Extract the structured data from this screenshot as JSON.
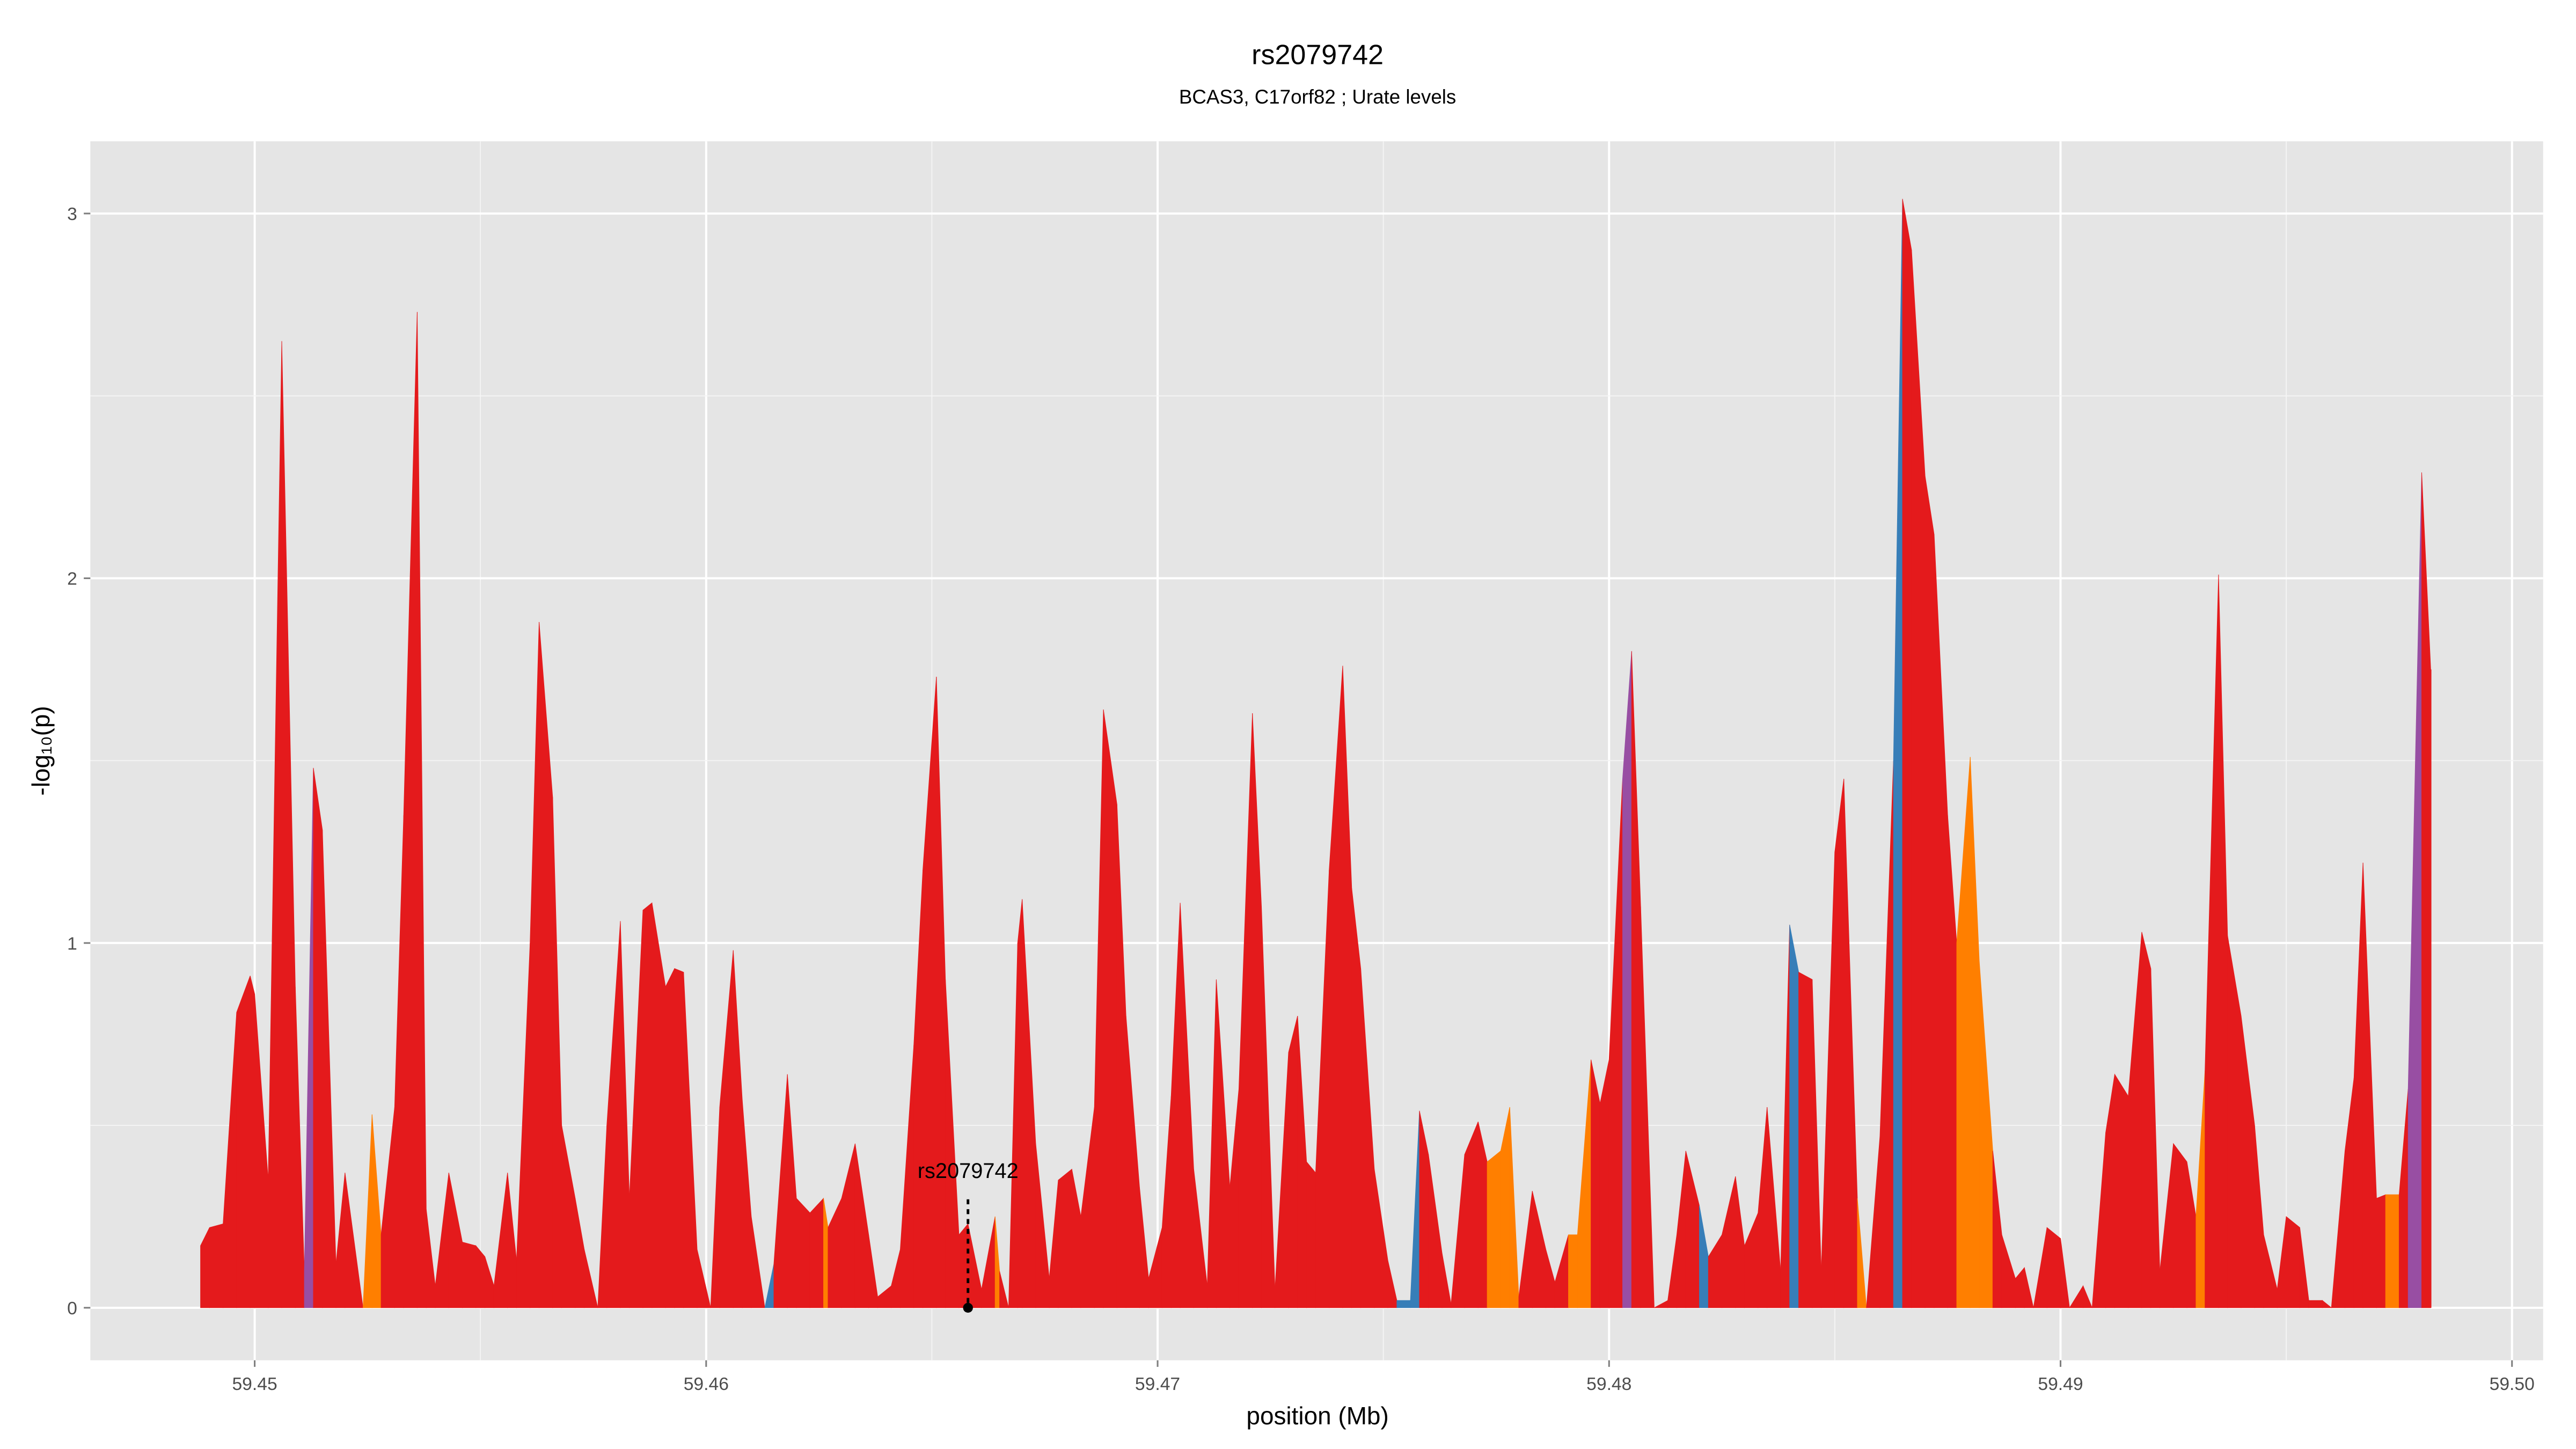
{
  "chart_data": {
    "type": "area",
    "title": "rs2079742",
    "subtitle": "BCAS3, C17orf82 ; Urate levels",
    "x_label": "position (Mb)",
    "y_label": "-log₁₀(p)",
    "xlim": [
      59.44636,
      59.50069
    ],
    "ylim": [
      -0.144,
      3.198
    ],
    "xticks": [
      59.45,
      59.46,
      59.47,
      59.48,
      59.49,
      {
        "value": 59.5,
        "label": "59.50"
      }
    ],
    "yticks": [
      0,
      1,
      2,
      3
    ],
    "grid": true,
    "annotation": {
      "label": "rs2079742",
      "x": 59.4658,
      "y": 0
    },
    "x": [
      59.4488,
      59.449,
      59.4493,
      59.4496,
      59.4499,
      59.45,
      59.4503,
      59.4506,
      59.4509,
      59.4511,
      59.4513,
      59.4515,
      59.4518,
      59.452,
      59.4524,
      59.4526,
      59.4528,
      59.4531,
      59.4533,
      59.4536,
      59.4538,
      59.454,
      59.4543,
      59.4546,
      59.4549,
      59.4551,
      59.4553,
      59.4556,
      59.4558,
      59.4561,
      59.4563,
      59.4566,
      59.4568,
      59.4571,
      59.4573,
      59.4576,
      59.4578,
      59.4581,
      59.4583,
      59.4586,
      59.4588,
      59.4591,
      59.4593,
      59.4595,
      59.4598,
      59.4601,
      59.4603,
      59.4606,
      59.4608,
      59.461,
      59.4613,
      59.4615,
      59.4618,
      59.462,
      59.4623,
      59.4626,
      59.4627,
      59.463,
      59.4633,
      59.4636,
      59.4638,
      59.4641,
      59.4643,
      59.4646,
      59.4648,
      59.4651,
      59.4653,
      59.4656,
      59.4658,
      59.4661,
      59.4664,
      59.4665,
      59.4667,
      59.4669,
      59.467,
      59.4673,
      59.4676,
      59.4678,
      59.4681,
      59.4683,
      59.4686,
      59.4688,
      59.4691,
      59.4693,
      59.4696,
      59.4698,
      59.4701,
      59.4703,
      59.4705,
      59.4708,
      59.4711,
      59.4713,
      59.4716,
      59.4718,
      59.4721,
      59.4723,
      59.4726,
      59.4729,
      59.4731,
      59.4733,
      59.4735,
      59.4738,
      59.4741,
      59.4743,
      59.4745,
      59.4748,
      59.4751,
      59.4753,
      59.4756,
      59.4758,
      59.476,
      59.4763,
      59.4765,
      59.4768,
      59.4771,
      59.4773,
      59.4776,
      59.4778,
      59.478,
      59.4783,
      59.4786,
      59.4788,
      59.4791,
      59.4793,
      59.4796,
      59.4798,
      59.48,
      59.4803,
      59.4805,
      59.4807,
      59.481,
      59.4813,
      59.4815,
      59.4817,
      59.482,
      59.4822,
      59.4825,
      59.4828,
      59.483,
      59.4833,
      59.4835,
      59.4838,
      59.484,
      59.4842,
      59.4845,
      59.4847,
      59.485,
      59.4852,
      59.4855,
      59.4857,
      59.486,
      59.4863,
      59.4865,
      59.4867,
      59.487,
      59.4872,
      59.4875,
      59.4877,
      59.488,
      59.4882,
      59.4885,
      59.4887,
      59.489,
      59.4892,
      59.4894,
      59.4897,
      59.49,
      59.4902,
      59.4905,
      59.4907,
      59.491,
      59.4912,
      59.4915,
      59.4918,
      59.492,
      59.4922,
      59.4925,
      59.4928,
      59.493,
      59.4932,
      59.4935,
      59.4937,
      59.494,
      59.4943,
      59.4945,
      59.4948,
      59.495,
      59.4953,
      59.4955,
      59.4958,
      59.496,
      59.4963,
      59.4965,
      59.4967,
      59.497,
      59.4972,
      59.4975,
      59.4977,
      59.498,
      59.4982
    ],
    "values": [
      0.17,
      0.22,
      0.23,
      0.81,
      0.91,
      0.86,
      0.35,
      2.65,
      0.88,
      0.1,
      1.48,
      1.31,
      0.12,
      0.37,
      0,
      0.53,
      0.2,
      0.55,
      1.35,
      2.73,
      0.27,
      0.06,
      0.37,
      0.18,
      0.17,
      0.14,
      0.06,
      0.37,
      0.13,
      1,
      1.88,
      1.4,
      0.5,
      0.3,
      0.16,
      0,
      0.5,
      1.06,
      0.3,
      1.09,
      1.11,
      0.88,
      0.93,
      0.92,
      0.16,
      0,
      0.55,
      0.98,
      0.57,
      0.25,
      0,
      0.12,
      0.64,
      0.3,
      0.26,
      0.3,
      0.22,
      0.3,
      0.45,
      0.2,
      0.03,
      0.06,
      0.16,
      0.72,
      1.2,
      1.73,
      0.9,
      0.2,
      0.23,
      0.05,
      0.25,
      0.1,
      0,
      1,
      1.12,
      0.45,
      0.08,
      0.35,
      0.38,
      0.25,
      0.55,
      1.64,
      1.38,
      0.8,
      0.33,
      0.08,
      0.22,
      0.58,
      1.11,
      0.38,
      0.06,
      0.9,
      0.33,
      0.6,
      1.63,
      1.1,
      0.05,
      0.7,
      0.8,
      0.4,
      0.37,
      1.2,
      1.76,
      1.15,
      0.93,
      0.38,
      0.13,
      0.02,
      0.02,
      0.54,
      0.42,
      0.15,
      0.01,
      0.42,
      0.51,
      0.4,
      0.43,
      0.55,
      0.03,
      0.32,
      0.16,
      0.07,
      0.2,
      0.2,
      0.68,
      0.56,
      0.68,
      1.45,
      1.8,
      1.1,
      0,
      0.02,
      0.2,
      0.43,
      0.28,
      0.14,
      0.2,
      0.36,
      0.17,
      0.26,
      0.55,
      0.1,
      1.05,
      0.92,
      0.9,
      0.1,
      1.25,
      1.45,
      0.3,
      0,
      0.47,
      1.5,
      3.04,
      2.9,
      2.28,
      2.12,
      1.35,
      1,
      1.51,
      0.95,
      0.43,
      0.2,
      0.08,
      0.11,
      0,
      0.22,
      0.19,
      0,
      0.06,
      0,
      0.48,
      0.64,
      0.58,
      1.03,
      0.93,
      0.1,
      0.45,
      0.4,
      0.25,
      0.65,
      2.01,
      1.02,
      0.8,
      0.5,
      0.2,
      0.05,
      0.25,
      0.22,
      0.02,
      0.02,
      0,
      0.43,
      0.63,
      1.22,
      0.3,
      0.31,
      0.31,
      0.6,
      2.29,
      1.75
    ],
    "colors": [
      "#e41a1c",
      "#e41a1c",
      "#e41a1c",
      "#e41a1c",
      "#e41a1c",
      "#e41a1c",
      "#e41a1c",
      "#e41a1c",
      "#e41a1c",
      "#984ea3",
      "#e41a1c",
      "#e41a1c",
      "#e41a1c",
      "#e41a1c",
      "#ff7f00",
      "#ff7f00",
      "#e41a1c",
      "#e41a1c",
      "#e41a1c",
      "#e41a1c",
      "#e41a1c",
      "#e41a1c",
      "#e41a1c",
      "#e41a1c",
      "#e41a1c",
      "#e41a1c",
      "#e41a1c",
      "#e41a1c",
      "#e41a1c",
      "#e41a1c",
      "#e41a1c",
      "#e41a1c",
      "#e41a1c",
      "#e41a1c",
      "#e41a1c",
      "#e41a1c",
      "#e41a1c",
      "#e41a1c",
      "#e41a1c",
      "#e41a1c",
      "#e41a1c",
      "#e41a1c",
      "#e41a1c",
      "#e41a1c",
      "#e41a1c",
      "#e41a1c",
      "#e41a1c",
      "#e41a1c",
      "#e41a1c",
      "#e41a1c",
      "#377eb8",
      "#e41a1c",
      "#e41a1c",
      "#e41a1c",
      "#e41a1c",
      "#ff7f00",
      "#e41a1c",
      "#e41a1c",
      "#e41a1c",
      "#e41a1c",
      "#e41a1c",
      "#e41a1c",
      "#e41a1c",
      "#e41a1c",
      "#e41a1c",
      "#e41a1c",
      "#e41a1c",
      "#e41a1c",
      "#e41a1c",
      "#e41a1c",
      "#ff7f00",
      "#e41a1c",
      "#e41a1c",
      "#e41a1c",
      "#e41a1c",
      "#e41a1c",
      "#e41a1c",
      "#e41a1c",
      "#e41a1c",
      "#e41a1c",
      "#e41a1c",
      "#e41a1c",
      "#e41a1c",
      "#e41a1c",
      "#e41a1c",
      "#e41a1c",
      "#e41a1c",
      "#e41a1c",
      "#e41a1c",
      "#e41a1c",
      "#e41a1c",
      "#e41a1c",
      "#e41a1c",
      "#e41a1c",
      "#e41a1c",
      "#e41a1c",
      "#e41a1c",
      "#e41a1c",
      "#e41a1c",
      "#e41a1c",
      "#e41a1c",
      "#e41a1c",
      "#e41a1c",
      "#e41a1c",
      "#e41a1c",
      "#e41a1c",
      "#e41a1c",
      "#377eb8",
      "#377eb8",
      "#e41a1c",
      "#e41a1c",
      "#e41a1c",
      "#e41a1c",
      "#e41a1c",
      "#e41a1c",
      "#ff7f00",
      "#ff7f00",
      "#ff7f00",
      "#e41a1c",
      "#e41a1c",
      "#e41a1c",
      "#e41a1c",
      "#ff7f00",
      "#ff7f00",
      "#e41a1c",
      "#e41a1c",
      "#e41a1c",
      "#984ea3",
      "#e41a1c",
      "#e41a1c",
      "#e41a1c",
      "#e41a1c",
      "#e41a1c",
      "#e41a1c",
      "#377eb8",
      "#e41a1c",
      "#e41a1c",
      "#e41a1c",
      "#e41a1c",
      "#e41a1c",
      "#e41a1c",
      "#e41a1c",
      "#377eb8",
      "#e41a1c",
      "#e41a1c",
      "#e41a1c",
      "#e41a1c",
      "#e41a1c",
      "#ff7f00",
      "#e41a1c",
      "#e41a1c",
      "#377eb8",
      "#e41a1c",
      "#e41a1c",
      "#e41a1c",
      "#e41a1c",
      "#e41a1c",
      "#ff7f00",
      "#ff7f00",
      "#ff7f00",
      "#e41a1c",
      "#e41a1c",
      "#e41a1c",
      "#e41a1c",
      "#e41a1c",
      "#e41a1c",
      "#e41a1c",
      "#e41a1c",
      "#e41a1c",
      "#e41a1c",
      "#e41a1c",
      "#e41a1c",
      "#e41a1c",
      "#e41a1c",
      "#e41a1c",
      "#e41a1c",
      "#e41a1c",
      "#e41a1c",
      "#ff7f00",
      "#e41a1c",
      "#e41a1c",
      "#e41a1c",
      "#e41a1c",
      "#e41a1c",
      "#e41a1c",
      "#e41a1c",
      "#e41a1c",
      "#e41a1c",
      "#e41a1c",
      "#e41a1c",
      "#e41a1c",
      "#e41a1c",
      "#e41a1c",
      "#e41a1c",
      "#e41a1c",
      "#ff7f00",
      "#e41a1c",
      "#984ea3",
      "#e41a1c",
      "#e41a1c"
    ]
  }
}
